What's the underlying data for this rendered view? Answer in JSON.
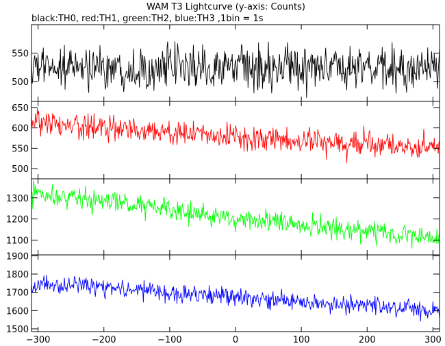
{
  "header": {
    "title": "WAM T3 Lightcurve (y-axis: Counts)",
    "subtitle": "black:TH0, red:TH1, green:TH2, blue:TH3 ,1bin = 1s"
  },
  "chart_data": [
    {
      "type": "line",
      "series": [
        {
          "color": "#000000",
          "trend": [
            [
              -310,
              525
            ],
            [
              310,
              522
            ]
          ],
          "noise": 30
        }
      ],
      "xlim": [
        -310,
        310
      ],
      "ylim": [
        465,
        600
      ],
      "yticks": [
        500,
        550
      ],
      "xticks": [
        -300,
        -200,
        -100,
        0,
        100,
        200,
        300
      ],
      "show_x_tick_labels": false
    },
    {
      "type": "line",
      "series": [
        {
          "color": "#ff0000",
          "trend": [
            [
              -310,
              610
            ],
            [
              -100,
              590
            ],
            [
              100,
              565
            ],
            [
              310,
              555
            ]
          ],
          "noise": 25
        }
      ],
      "xlim": [
        -310,
        310
      ],
      "ylim": [
        475,
        665
      ],
      "yticks": [
        500,
        550,
        600,
        650
      ],
      "xticks": [
        -300,
        -200,
        -100,
        0,
        100,
        200,
        300
      ],
      "show_x_tick_labels": false
    },
    {
      "type": "line",
      "series": [
        {
          "color": "#00ff00",
          "trend": [
            [
              -310,
              1320
            ],
            [
              -250,
              1305
            ],
            [
              -100,
              1240
            ],
            [
              0,
              1200
            ],
            [
              100,
              1170
            ],
            [
              200,
              1140
            ],
            [
              310,
              1110
            ]
          ],
          "noise": 40
        }
      ],
      "xlim": [
        -310,
        310
      ],
      "ylim": [
        1030,
        1390
      ],
      "yticks": [
        1100,
        1200,
        1300
      ],
      "xticks": [
        -300,
        -200,
        -100,
        0,
        100,
        200,
        300
      ],
      "show_x_tick_labels": false
    },
    {
      "type": "line",
      "series": [
        {
          "color": "#0000ff",
          "trend": [
            [
              -310,
              1740
            ],
            [
              -250,
              1735
            ],
            [
              -100,
              1700
            ],
            [
              0,
              1670
            ],
            [
              100,
              1650
            ],
            [
              200,
              1620
            ],
            [
              310,
              1600
            ]
          ],
          "noise": 40
        }
      ],
      "xlim": [
        -310,
        310
      ],
      "ylim": [
        1485,
        1905
      ],
      "yticks": [
        1500,
        1600,
        1700,
        1800,
        1900
      ],
      "xticks": [
        -300,
        -200,
        -100,
        0,
        100,
        200,
        300
      ],
      "show_x_tick_labels": true
    }
  ]
}
